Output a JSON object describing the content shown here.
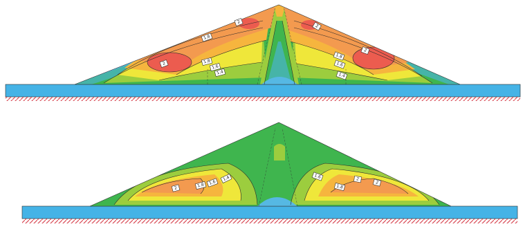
{
  "colors": {
    "foundation": "#45b3e6",
    "base_hatch": "#d84a55",
    "bands": [
      "#56b8e3",
      "#46b4a8",
      "#3fb54e",
      "#9ccd3e",
      "#efe73a",
      "#f6b53e",
      "#f39a4f",
      "#ec5c4f"
    ]
  },
  "top_section": {
    "labels": [
      "1.8",
      "2",
      "2",
      "1.8",
      "1.6",
      "1.4",
      "1.8",
      "1.6",
      "1.4",
      "2",
      "2"
    ]
  },
  "bottom_section": {
    "labels": [
      "2",
      "1.8",
      "1.6",
      "1.4",
      "1.6",
      "1.8",
      "2",
      "2"
    ]
  }
}
